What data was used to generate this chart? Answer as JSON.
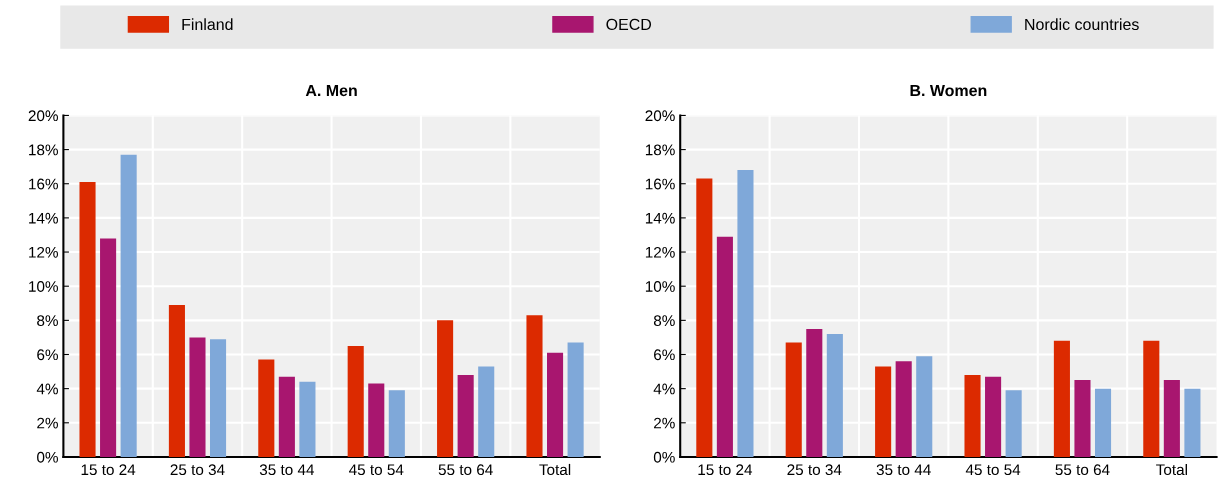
{
  "chart_data": [
    {
      "type": "bar",
      "title": "A. Men",
      "categories": [
        "15 to 24",
        "25 to 34",
        "35 to 44",
        "45 to 54",
        "55 to 64",
        "Total"
      ],
      "series": [
        {
          "name": "Finland",
          "color": "#dc2a00",
          "values": [
            16.1,
            8.9,
            5.7,
            6.5,
            8.0,
            8.3
          ]
        },
        {
          "name": "OECD",
          "color": "#a8166f",
          "values": [
            12.8,
            7.0,
            4.7,
            4.3,
            4.8,
            6.1
          ]
        },
        {
          "name": "Nordic countries",
          "color": "#7fa8d9",
          "values": [
            17.7,
            6.9,
            4.4,
            3.9,
            5.3,
            6.7
          ]
        }
      ],
      "ylim": [
        0,
        20
      ],
      "yticks": [
        {
          "value": 0,
          "label": "0%"
        },
        {
          "value": 2,
          "label": "2%"
        },
        {
          "value": 4,
          "label": "4%"
        },
        {
          "value": 6,
          "label": "6%"
        },
        {
          "value": 8,
          "label": "8%"
        },
        {
          "value": 10,
          "label": "10%"
        },
        {
          "value": 12,
          "label": "12%"
        },
        {
          "value": 14,
          "label": "14%"
        },
        {
          "value": 16,
          "label": "16%"
        },
        {
          "value": 18,
          "label": "18%"
        },
        {
          "value": 20,
          "label": "20%"
        }
      ],
      "grid": true,
      "legend": "top"
    },
    {
      "type": "bar",
      "title": "B. Women",
      "categories": [
        "15 to 24",
        "25 to 34",
        "35 to 44",
        "45 to 54",
        "55 to 64",
        "Total"
      ],
      "series": [
        {
          "color": "#dc2a00",
          "values": [
            16.3,
            6.7,
            5.3,
            4.8,
            6.8,
            6.8
          ]
        },
        {
          "color": "#a8166f",
          "values": [
            12.9,
            7.5,
            5.6,
            4.7,
            4.5,
            4.5
          ]
        },
        {
          "color": "#7fa8d9",
          "values": [
            16.8,
            7.2,
            5.9,
            3.9,
            4.0,
            4.0
          ]
        }
      ],
      "ylim": [
        0,
        20
      ],
      "yticks": [
        {
          "value": 0,
          "label": "0%"
        },
        {
          "value": 2,
          "label": "2%"
        },
        {
          "value": 4,
          "label": "4%"
        },
        {
          "value": 6,
          "label": "6%"
        },
        {
          "value": 8,
          "label": "8%"
        },
        {
          "value": 10,
          "label": "10%"
        },
        {
          "value": 12,
          "label": "12%"
        },
        {
          "value": 14,
          "label": "14%"
        },
        {
          "value": 16,
          "label": "16%"
        },
        {
          "value": 18,
          "label": "18%"
        },
        {
          "value": 20,
          "label": "20%"
        }
      ],
      "grid": true
    }
  ]
}
